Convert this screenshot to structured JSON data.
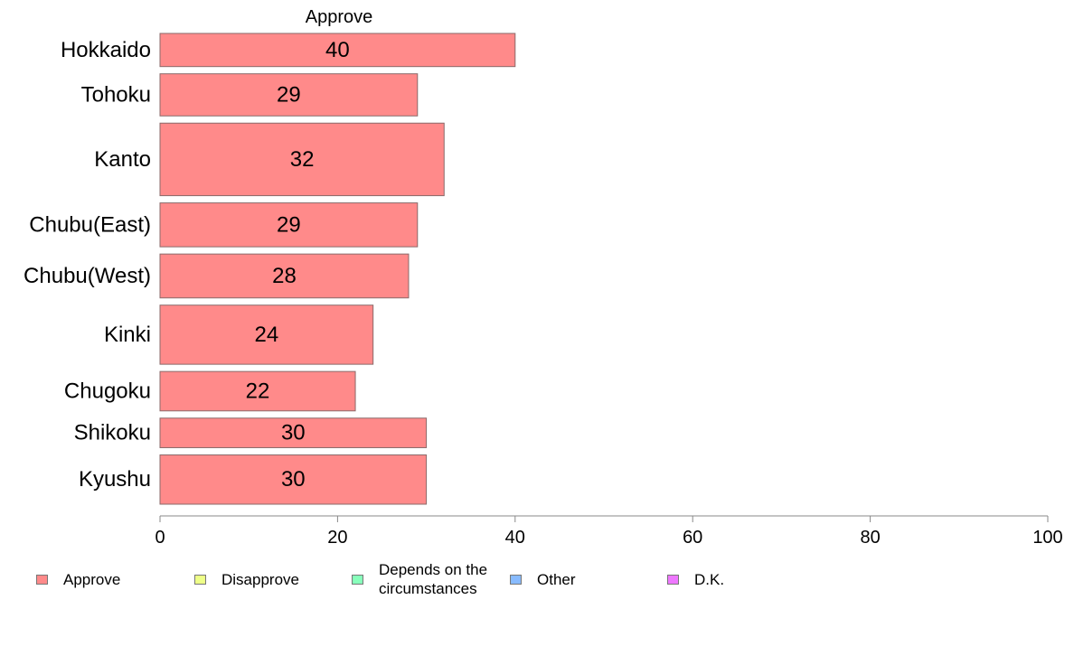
{
  "chart_data": {
    "type": "bar",
    "orientation": "horizontal",
    "title": "Approve",
    "categories": [
      "Hokkaido",
      "Tohoku",
      "Kanto",
      "Chubu(East)",
      "Chubu(West)",
      "Kinki",
      "Chugoku",
      "Shikoku",
      "Kyushu"
    ],
    "series": [
      {
        "name": "Approve",
        "values": [
          40,
          29,
          32,
          29,
          28,
          24,
          22,
          30,
          30
        ],
        "color": "#ff8a8a"
      }
    ],
    "bar_weights": [
      37,
      47,
      81,
      49,
      49,
      66,
      44,
      33,
      55
    ],
    "data_labels": [
      "40",
      "29",
      "32",
      "29",
      "28",
      "24",
      "22",
      "30",
      "30"
    ],
    "xlim": [
      0,
      100
    ],
    "xticks": [
      "0",
      "20",
      "40",
      "60",
      "80",
      "100"
    ],
    "legend": [
      {
        "label": "Approve",
        "color": "#ff8a8a"
      },
      {
        "label": "Disapprove",
        "color": "#eeff88"
      },
      {
        "label": "Depends on the circumstances",
        "color": "#88ffbb"
      },
      {
        "label": "Other",
        "color": "#88bbff"
      },
      {
        "label": "D.K.",
        "color": "#ee77ff"
      }
    ],
    "legend_position": "bottom",
    "grid": false
  }
}
